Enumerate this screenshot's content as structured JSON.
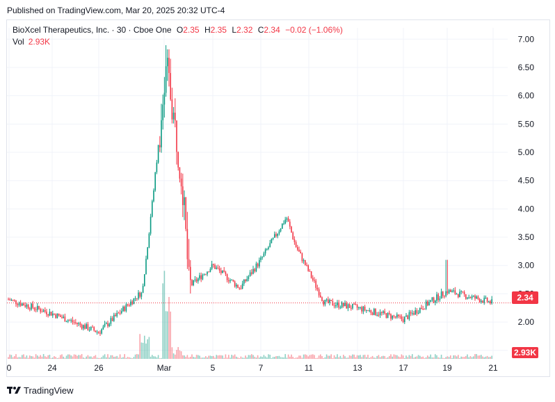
{
  "header": {
    "published": "Published on TradingView.com, Mar 20, 2025 20:32 UTC-4"
  },
  "legend": {
    "symbol": "BioXcel Therapeutics, Inc. · 30 · Cboe One",
    "o_label": "O",
    "o_value": "2.35",
    "h_label": "H",
    "h_value": "2.35",
    "l_label": "L",
    "l_value": "2.32",
    "c_label": "C",
    "c_value": "2.34",
    "change": "−0.02 (−1.06%)",
    "vol_label": "Vol",
    "vol_value": "2.93K"
  },
  "badges": {
    "last_price": "2.34",
    "last_volume": "2.93K"
  },
  "footer": {
    "brand": "TradingView",
    "logo_icon": "tradingview-logo-icon"
  },
  "colors": {
    "up": "#089981",
    "down": "#f23645",
    "grid": "#f0f3fa"
  },
  "chart_data": {
    "type": "candlestick",
    "title": "BioXcel Therapeutics, Inc. · 30 · Cboe One",
    "interval": "30",
    "x_tick_labels": [
      "0",
      "24",
      "26",
      "Mar",
      "5",
      "7",
      "11",
      "13",
      "17",
      "19",
      "21"
    ],
    "y_tick_labels": [
      "7.00",
      "6.50",
      "6.00",
      "5.50",
      "5.00",
      "4.50",
      "4.00",
      "3.50",
      "3.00",
      "2.50",
      "2.00",
      "1.50"
    ],
    "ylim": [
      1.35,
      7.2
    ],
    "last_price": 2.34,
    "price_key_points": [
      {
        "x": "0",
        "close": 2.4
      },
      {
        "x": "24",
        "close": 2.15
      },
      {
        "x": "26",
        "close": 1.82
      },
      {
        "x": "Feb 28",
        "close": 2.55
      },
      {
        "x": "Mar",
        "close": 6.5
      },
      {
        "x": "Mar 2",
        "close": 4.5
      },
      {
        "x": "Mar 3",
        "close": 2.62
      },
      {
        "x": "5",
        "close": 3.0
      },
      {
        "x": "6",
        "close": 2.6
      },
      {
        "x": "7",
        "close": 3.1
      },
      {
        "x": "9",
        "close": 3.85
      },
      {
        "x": "10",
        "close": 3.35
      },
      {
        "x": "11",
        "close": 2.35
      },
      {
        "x": "13",
        "close": 2.25
      },
      {
        "x": "17",
        "close": 2.05
      },
      {
        "x": "19",
        "close": 2.55
      },
      {
        "x": "21",
        "close": 2.34
      }
    ],
    "volume_last": "2.93K",
    "grid": true,
    "legend_position": "top-left"
  }
}
